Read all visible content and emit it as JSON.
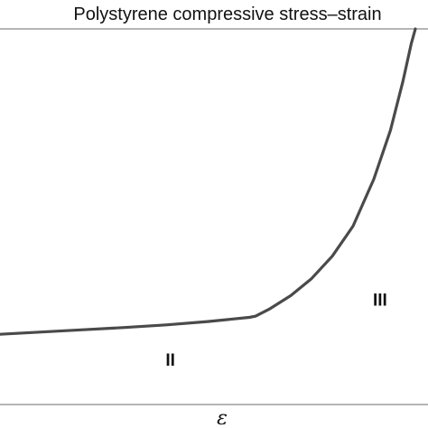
{
  "chart_data": {
    "type": "line",
    "title": "Polystyrene compressive stress–strain",
    "xlabel": "ε",
    "ylabel": "",
    "xlim": [
      0,
      1
    ],
    "ylim": [
      0,
      1
    ],
    "grid": false,
    "series": [
      {
        "color": "#4a4a4a",
        "x": [
          0.0,
          0.1,
          0.2,
          0.3,
          0.4,
          0.5,
          0.6,
          0.615,
          0.65,
          0.7,
          0.75,
          0.8,
          0.85,
          0.9,
          0.94,
          0.97,
          0.99,
          1.0
        ],
        "y": [
          0.187,
          0.193,
          0.199,
          0.205,
          0.212,
          0.221,
          0.232,
          0.235,
          0.255,
          0.29,
          0.335,
          0.395,
          0.475,
          0.6,
          0.73,
          0.86,
          0.96,
          1.0
        ]
      }
    ],
    "annotations": [
      {
        "text": "II",
        "x": 0.41,
        "y": 0.12
      },
      {
        "text": "III",
        "x": 0.915,
        "y": 0.28
      }
    ]
  }
}
